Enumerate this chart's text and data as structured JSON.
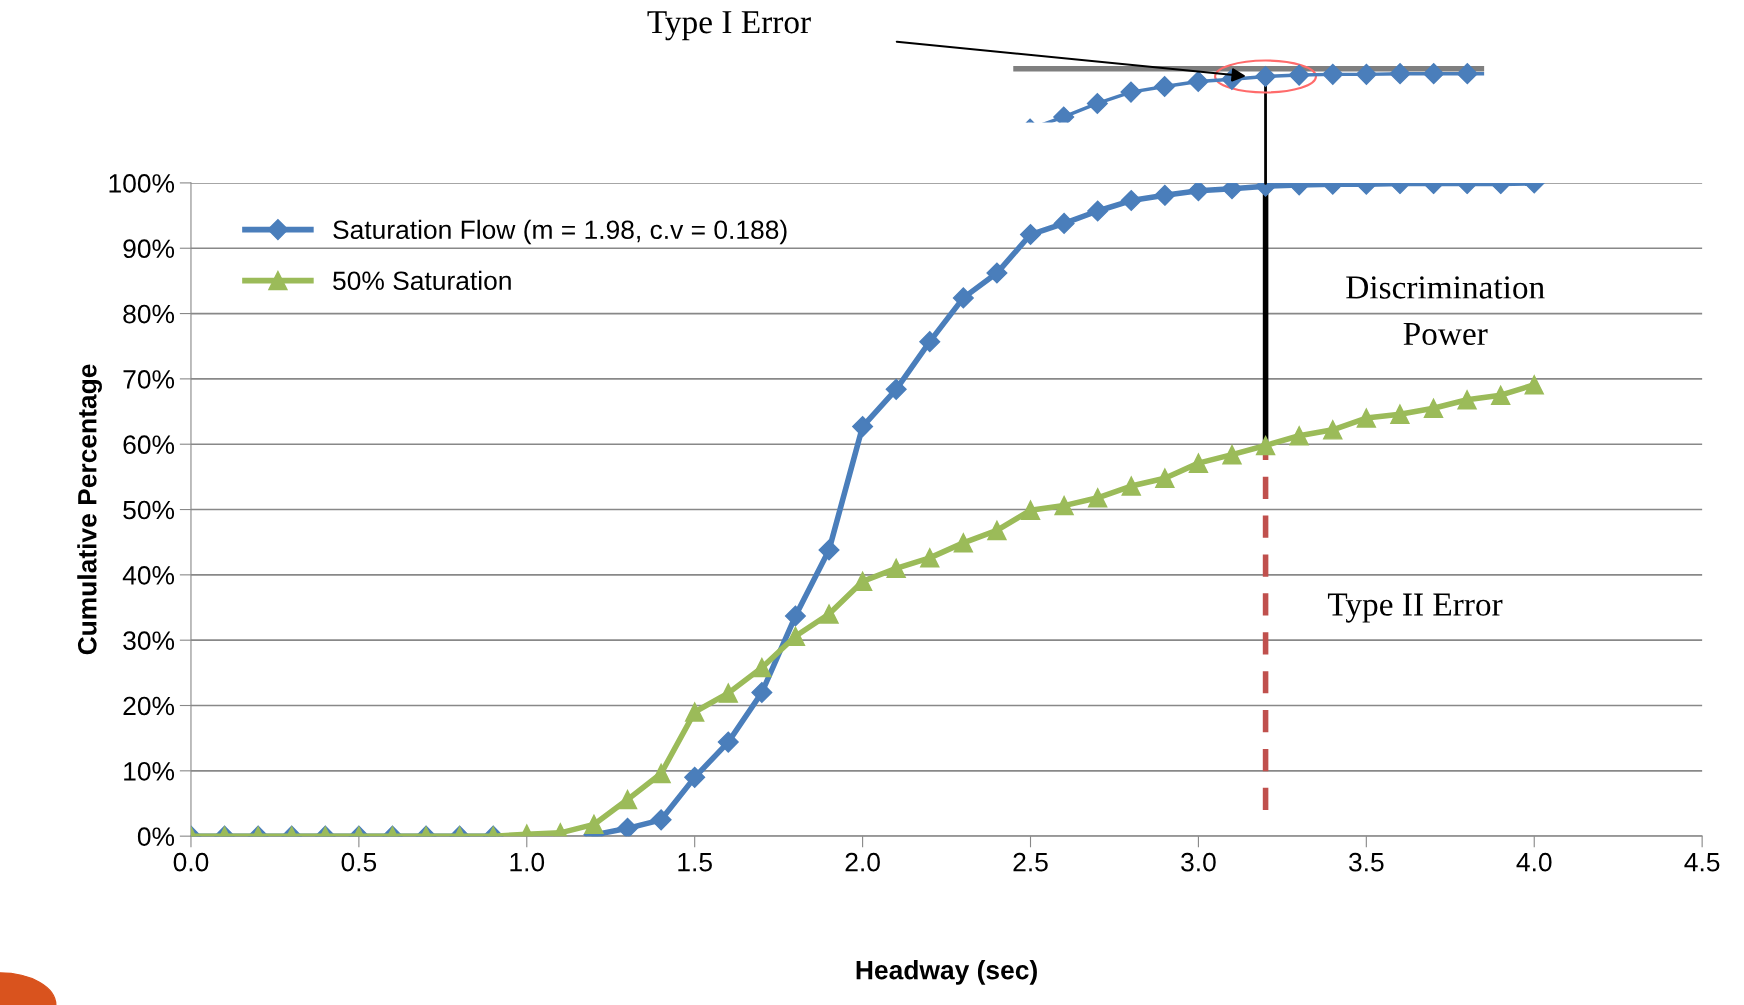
{
  "chart_data": {
    "type": "line",
    "xlabel": "Headway (sec)",
    "ylabel": "Cumulative Percentage",
    "x": [
      0.0,
      0.1,
      0.2,
      0.3,
      0.4,
      0.5,
      0.6,
      0.7,
      0.8,
      0.9,
      1.0,
      1.1,
      1.2,
      1.3,
      1.4,
      1.5,
      1.6,
      1.7,
      1.8,
      1.9,
      2.0,
      2.1,
      2.2,
      2.3,
      2.4,
      2.5,
      2.6,
      2.7,
      2.8,
      2.9,
      3.0,
      3.1,
      3.2,
      3.3,
      3.4,
      3.5,
      3.6,
      3.7,
      3.8,
      3.9,
      4.0
    ],
    "series": [
      {
        "name": "Saturation Flow (m = 1.98, c.v = 0.188)",
        "color": "#4a7ebb",
        "marker": "diamond",
        "values": [
          0,
          0,
          0,
          0,
          0,
          0,
          0,
          0,
          0,
          0,
          null,
          null,
          0.2,
          1.2,
          2.5,
          9,
          14.4,
          22,
          33.7,
          43.8,
          62.7,
          68.4,
          75.7,
          82.4,
          86.2,
          92.1,
          93.8,
          95.7,
          97.3,
          98.1,
          98.8,
          99.1,
          99.5,
          99.7,
          99.8,
          99.8,
          99.9,
          99.9,
          99.9,
          99.9,
          100
        ]
      },
      {
        "name": "50% Saturation",
        "color": "#9bbb59",
        "marker": "triangle",
        "values": [
          0,
          0,
          0,
          0,
          0,
          0,
          0,
          0,
          0,
          0,
          0.3,
          0.5,
          1.8,
          5.6,
          9.6,
          19,
          21.9,
          25.8,
          30.6,
          34,
          39,
          41,
          42.6,
          44.9,
          46.8,
          49.9,
          50.6,
          51.8,
          53.6,
          54.8,
          57.1,
          58.4,
          59.8,
          61.3,
          62.2,
          64,
          64.6,
          65.5,
          66.8,
          67.5,
          69.1
        ]
      }
    ],
    "xlim": [
      0,
      4.5
    ],
    "xticks": [
      {
        "value": 0,
        "label": "0.0"
      },
      {
        "value": 0.5,
        "label": "0.5"
      },
      {
        "value": 1,
        "label": "1.0"
      },
      {
        "value": 1.5,
        "label": "1.5"
      },
      {
        "value": 2,
        "label": "2.0"
      },
      {
        "value": 2.5,
        "label": "2.5"
      },
      {
        "value": 3,
        "label": "3.0"
      },
      {
        "value": 3.5,
        "label": "3.5"
      },
      {
        "value": 4,
        "label": "4.0"
      },
      {
        "value": 4.5,
        "label": "4.5"
      }
    ],
    "ylim": [
      0,
      100
    ],
    "yticks": [
      {
        "value": 0,
        "label": "0%"
      },
      {
        "value": 10,
        "label": "10%"
      },
      {
        "value": 20,
        "label": "20%"
      },
      {
        "value": 30,
        "label": "30%"
      },
      {
        "value": 40,
        "label": "40%"
      },
      {
        "value": 50,
        "label": "50%"
      },
      {
        "value": 60,
        "label": "60%"
      },
      {
        "value": 70,
        "label": "70%"
      },
      {
        "value": 80,
        "label": "80%"
      },
      {
        "value": 90,
        "label": "90%"
      },
      {
        "value": 100,
        "label": "100%"
      }
    ],
    "grid": "y",
    "legend": "top left",
    "line_style": "solid",
    "ref_lines": [
      {
        "axis": "x",
        "value": 3.2,
        "color": "#c0504d",
        "line_style": "dashed"
      }
    ],
    "annotations": [
      "Discrimination\nPower",
      "Type II Error",
      "Type I Error"
    ]
  }
}
